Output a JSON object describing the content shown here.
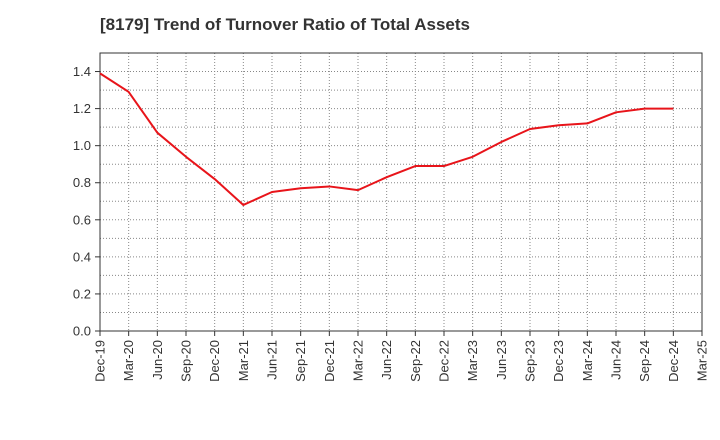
{
  "chart_data": {
    "type": "line",
    "title": "[8179]  Trend of Turnover Ratio of Total Assets",
    "xlabel": "",
    "ylabel": "",
    "ylim": [
      0,
      1.5
    ],
    "yticks": [
      "0.0",
      "0.2",
      "0.4",
      "0.6",
      "0.8",
      "1.0",
      "1.2",
      "1.4"
    ],
    "ytick_values": [
      0,
      0.2,
      0.4,
      0.6,
      0.8,
      1.0,
      1.2,
      1.4
    ],
    "x": [
      "Dec-19",
      "Mar-20",
      "Jun-20",
      "Sep-20",
      "Dec-20",
      "Mar-21",
      "Jun-21",
      "Sep-21",
      "Dec-21",
      "Mar-22",
      "Jun-22",
      "Sep-22",
      "Dec-22",
      "Mar-23",
      "Jun-23",
      "Sep-23",
      "Dec-23",
      "Mar-24",
      "Jun-24",
      "Sep-24",
      "Dec-24",
      "Mar-25"
    ],
    "grid": true,
    "legend": "none",
    "series": [
      {
        "color": "#e8141a",
        "values": [
          1.39,
          1.29,
          1.07,
          0.94,
          0.82,
          0.68,
          0.75,
          0.77,
          0.78,
          0.76,
          0.83,
          0.89,
          0.89,
          0.94,
          1.02,
          1.09,
          1.11,
          1.12,
          1.18,
          1.2,
          1.2,
          null
        ]
      }
    ]
  }
}
